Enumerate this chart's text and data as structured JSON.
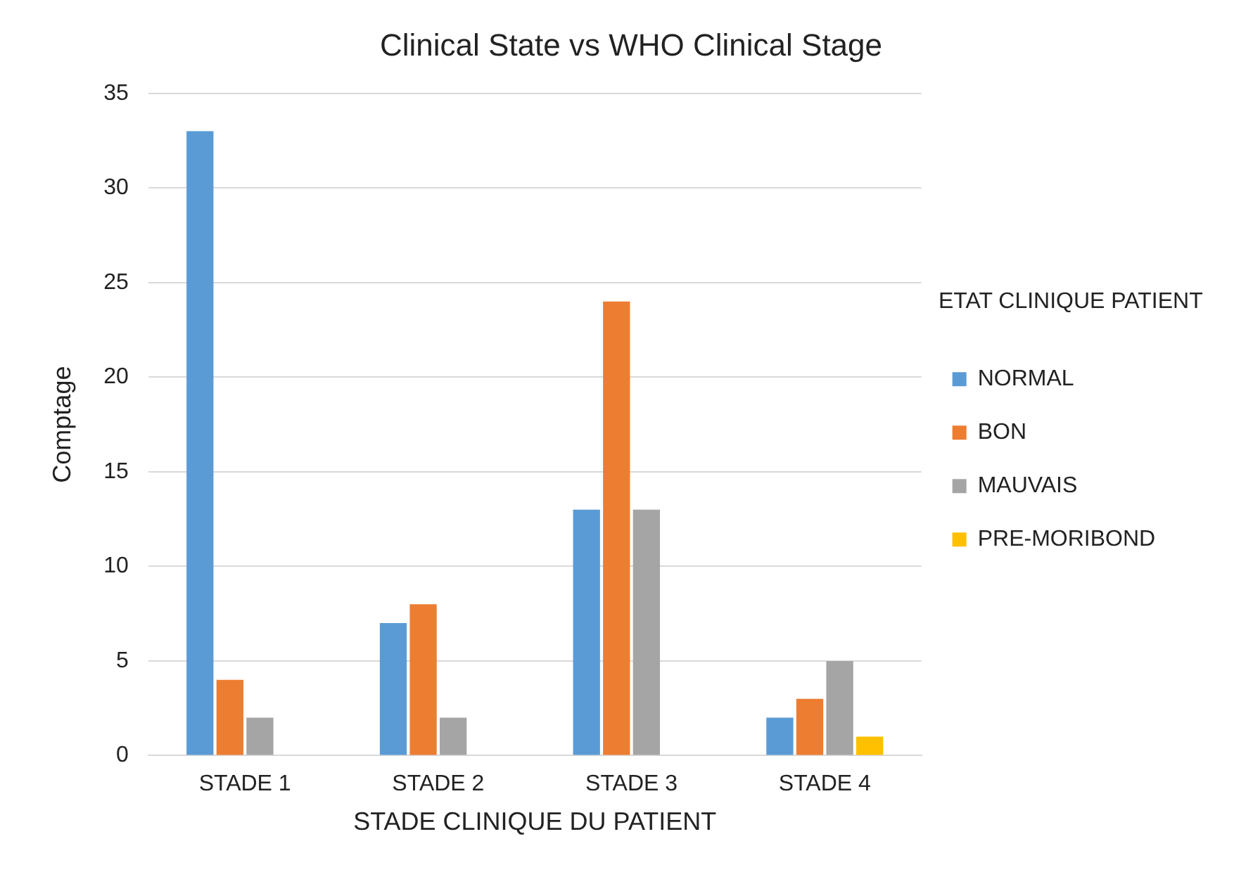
{
  "chart_data": {
    "type": "bar",
    "title": "Clinical State vs WHO Clinical Stage",
    "xlabel": "STADE CLINIQUE DU PATIENT",
    "ylabel": "Comptage",
    "legend_title": "ETAT CLINIQUE PATIENT",
    "categories": [
      "STADE 1",
      "STADE 2",
      "STADE 3",
      "STADE 4"
    ],
    "series": [
      {
        "name": "NORMAL",
        "color": "#5b9bd5",
        "values": [
          33,
          7,
          13,
          2
        ]
      },
      {
        "name": "BON",
        "color": "#ed7d31",
        "values": [
          4,
          8,
          24,
          3
        ]
      },
      {
        "name": "MAUVAIS",
        "color": "#a5a5a5",
        "values": [
          2,
          2,
          13,
          5
        ]
      },
      {
        "name": "PRE-MORIBOND",
        "color": "#ffc000",
        "values": [
          0,
          0,
          0,
          1
        ]
      }
    ],
    "ylim": [
      0,
      35
    ],
    "yticks": [
      0,
      5,
      10,
      15,
      20,
      25,
      30,
      35
    ],
    "grid": "y",
    "legend": "right"
  }
}
